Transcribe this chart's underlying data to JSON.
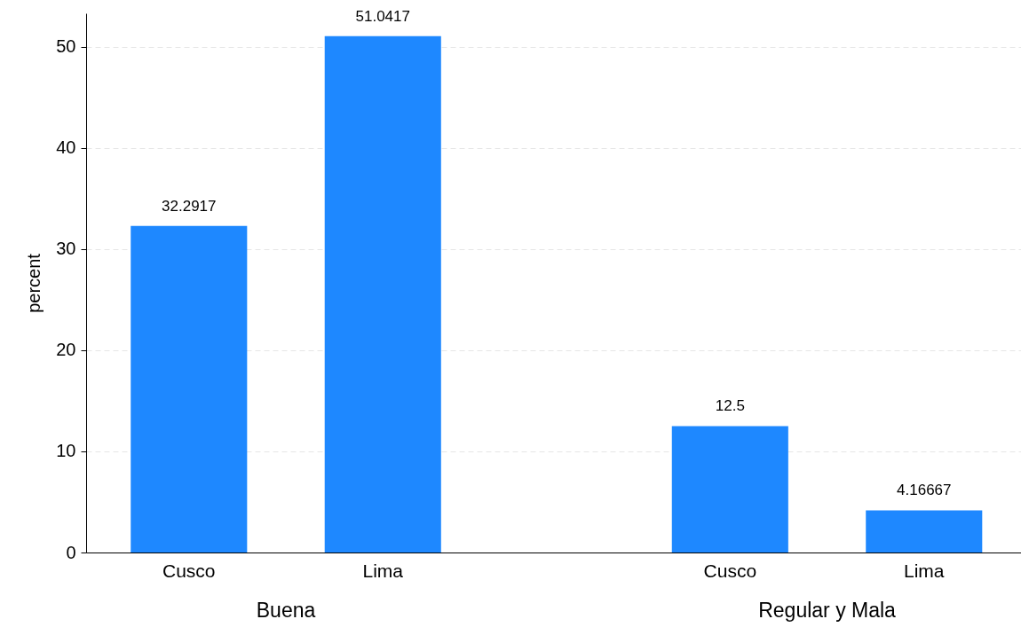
{
  "chart_data": {
    "type": "bar",
    "categories": [
      "Cusco",
      "Lima",
      "Cusco",
      "Lima"
    ],
    "values": [
      32.2917,
      51.0417,
      12.5,
      4.16667
    ],
    "color": "#1e88ff",
    "ylabel": "percent",
    "ylim": [
      0,
      53.3
    ],
    "yticks": [
      0,
      10,
      20,
      30,
      40,
      50
    ],
    "grid": "y",
    "data_labels": true,
    "annotations": [
      "Buena",
      "Regular y Mala"
    ]
  }
}
